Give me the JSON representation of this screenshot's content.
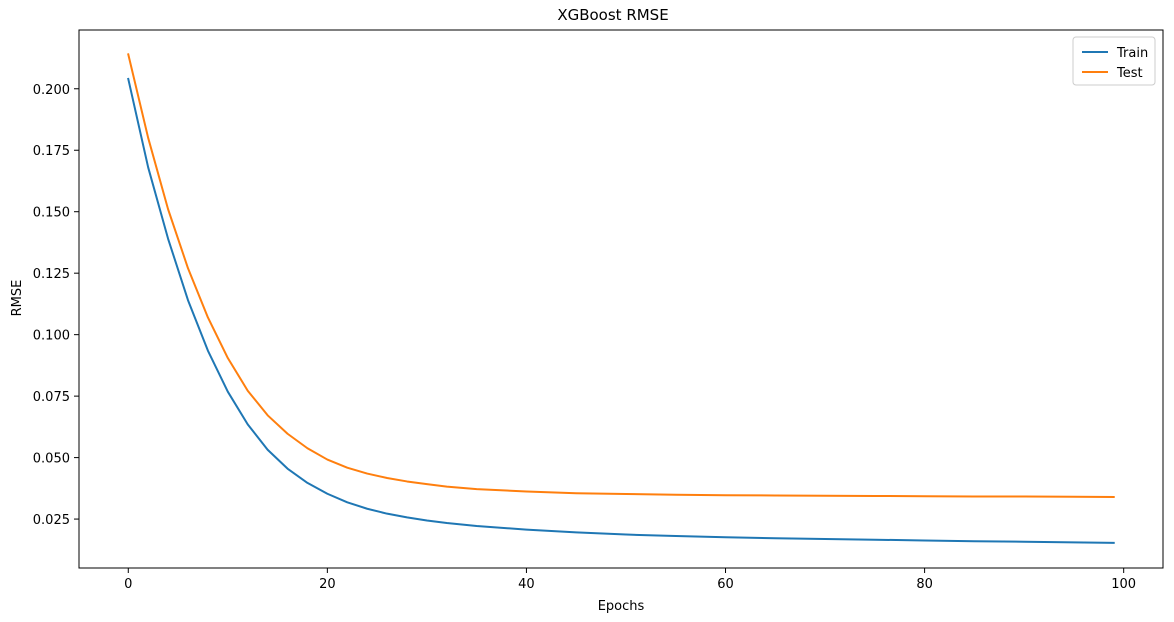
{
  "chart_data": {
    "type": "line",
    "title": "XGBoost RMSE",
    "xlabel": "Epochs",
    "ylabel": "RMSE",
    "xlim": [
      -4.95,
      103.95
    ],
    "ylim": [
      0.0051,
      0.2239
    ],
    "xticks": [
      0,
      20,
      40,
      60,
      80,
      100
    ],
    "xtick_labels": [
      "0",
      "20",
      "40",
      "60",
      "80",
      "100"
    ],
    "yticks": [
      0.025,
      0.05,
      0.075,
      0.1,
      0.125,
      0.15,
      0.175,
      0.2
    ],
    "ytick_labels": [
      "0.025",
      "0.050",
      "0.075",
      "0.100",
      "0.125",
      "0.150",
      "0.175",
      "0.200"
    ],
    "grid": false,
    "legend": "top-right",
    "series": [
      {
        "name": "Train",
        "color": "#1f77b4",
        "x": [
          0,
          2,
          4,
          6,
          8,
          10,
          12,
          14,
          16,
          18,
          20,
          22,
          24,
          26,
          28,
          30,
          32,
          35,
          40,
          45,
          50,
          55,
          60,
          65,
          70,
          75,
          80,
          85,
          90,
          95,
          99
        ],
        "values": [
          0.204,
          0.168,
          0.139,
          0.114,
          0.0935,
          0.0768,
          0.0635,
          0.0532,
          0.0455,
          0.0397,
          0.0353,
          0.0318,
          0.0292,
          0.0272,
          0.0257,
          0.0244,
          0.0234,
          0.0222,
          0.0207,
          0.0196,
          0.0187,
          0.0181,
          0.0176,
          0.0172,
          0.0169,
          0.0166,
          0.0163,
          0.016,
          0.0158,
          0.0155,
          0.0153
        ]
      },
      {
        "name": "Test",
        "color": "#ff7f0e",
        "x": [
          0,
          2,
          4,
          6,
          8,
          10,
          12,
          14,
          16,
          18,
          20,
          22,
          24,
          26,
          28,
          30,
          32,
          35,
          40,
          45,
          50,
          55,
          60,
          65,
          70,
          75,
          80,
          85,
          90,
          95,
          99
        ],
        "values": [
          0.214,
          0.18,
          0.151,
          0.127,
          0.107,
          0.0905,
          0.0772,
          0.0672,
          0.0597,
          0.0538,
          0.0492,
          0.0459,
          0.0435,
          0.0417,
          0.0403,
          0.0392,
          0.0382,
          0.0372,
          0.0362,
          0.0355,
          0.0352,
          0.0349,
          0.0347,
          0.0346,
          0.0345,
          0.0344,
          0.0343,
          0.0342,
          0.0342,
          0.0341,
          0.034
        ]
      }
    ]
  }
}
